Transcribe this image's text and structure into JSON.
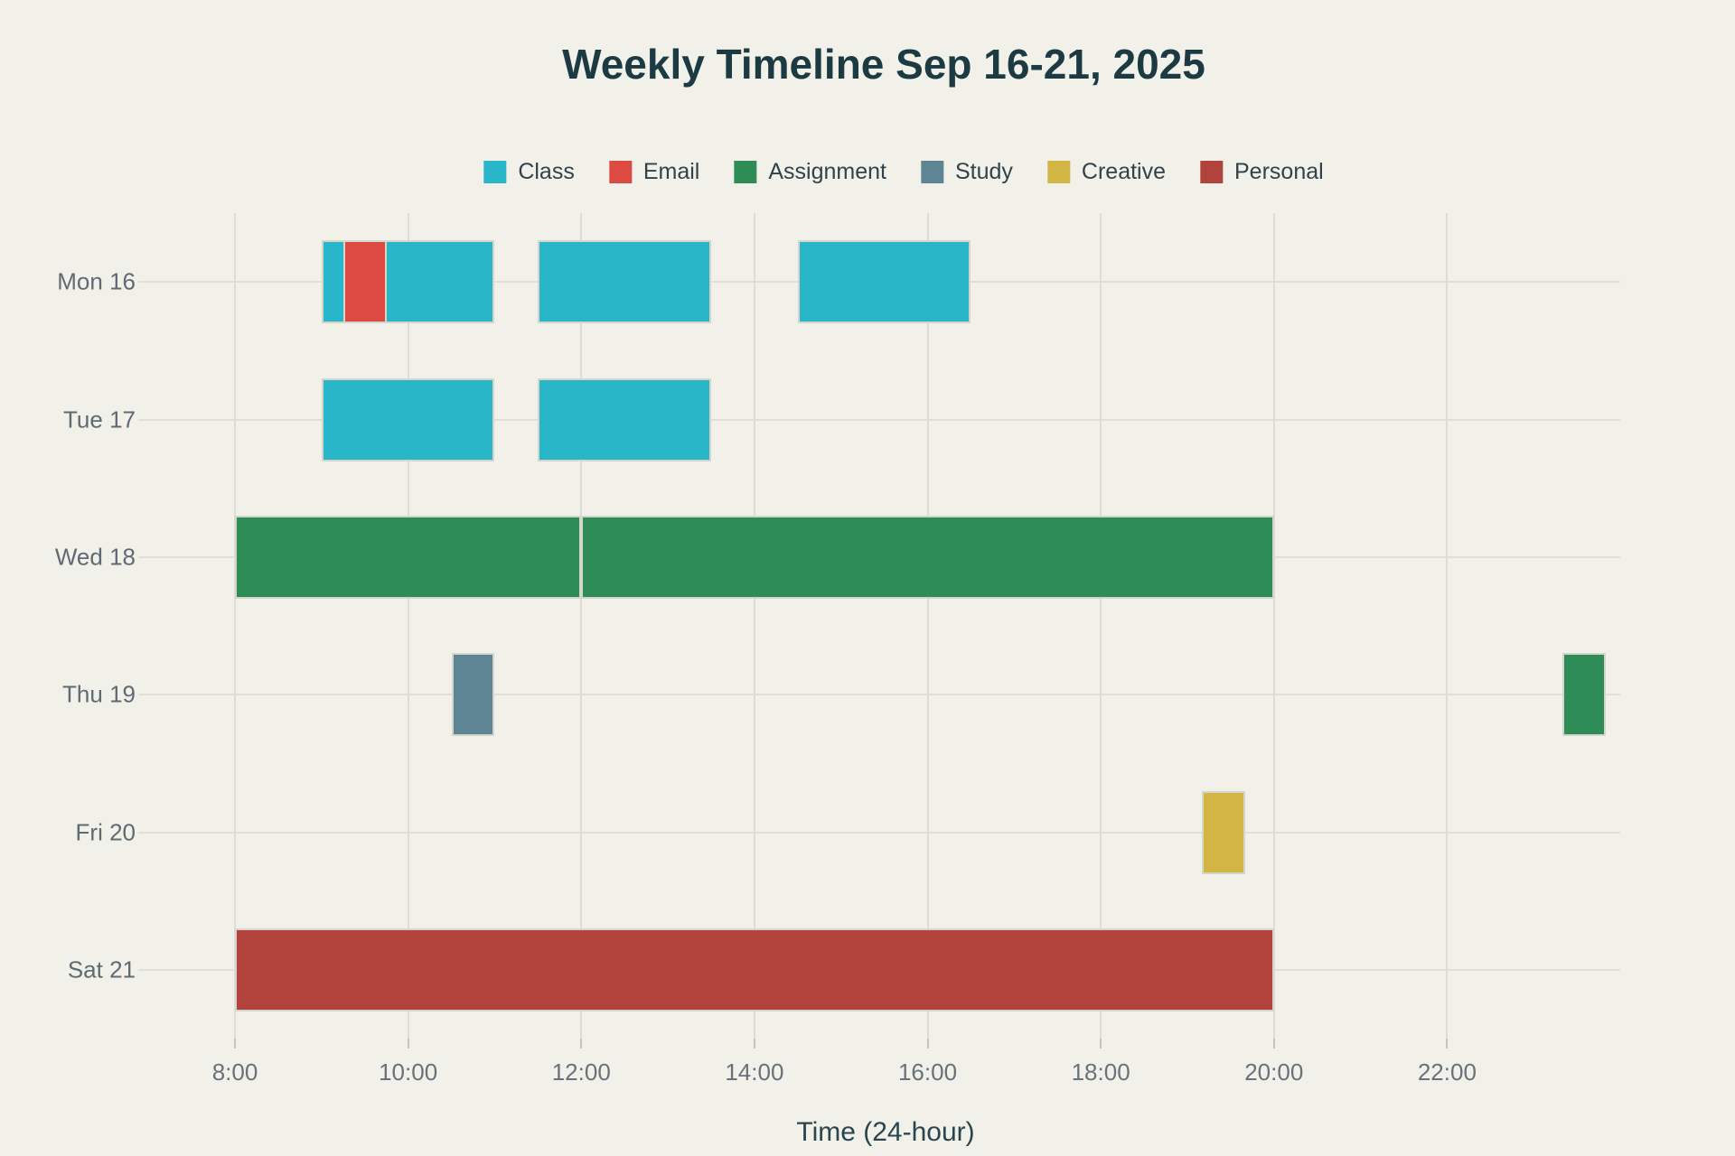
{
  "styles": {
    "background": "#f1f0e9",
    "title_color": "#1b3a42",
    "legend_text_color": "#32424b",
    "x_tick_label_color": "#68727b",
    "y_label_color": "#5f6a73",
    "axis_title_color": "#2a454e",
    "gridline_color": "#deddd5",
    "bar_border_color": "#d6d5cd"
  },
  "chart_data": {
    "type": "bar",
    "variant": "gantt-timeline",
    "title": "Weekly Timeline Sep 16-21, 2025",
    "xlabel": "Time (24-hour)",
    "ylabel": "",
    "grid": true,
    "legend_position": "top-center",
    "xlim": [
      8,
      24
    ],
    "x_tick_hours": [
      8,
      10,
      12,
      14,
      16,
      18,
      20,
      22
    ],
    "x_tick_labels": [
      "8:00",
      "10:00",
      "12:00",
      "14:00",
      "16:00",
      "18:00",
      "20:00",
      "22:00"
    ],
    "categories": [
      "Mon 16",
      "Tue 17",
      "Wed 18",
      "Thu 19",
      "Fri 20",
      "Sat 21"
    ],
    "legend": [
      {
        "label": "Class",
        "color": "#29b6c8"
      },
      {
        "label": "Email",
        "color": "#dc4a43"
      },
      {
        "label": "Assignment",
        "color": "#2e8c57"
      },
      {
        "label": "Study",
        "color": "#5e8593"
      },
      {
        "label": "Creative",
        "color": "#d3b543"
      },
      {
        "label": "Personal",
        "color": "#b1423c"
      }
    ],
    "bars": [
      {
        "day": "Mon 16",
        "row": 0,
        "category": "Class",
        "start": "9:00",
        "end": "11:00",
        "start_h": 9.0,
        "end_h": 11.0
      },
      {
        "day": "Mon 16",
        "row": 0,
        "category": "Email",
        "start": "9:15",
        "end": "9:45",
        "start_h": 9.25,
        "end_h": 9.75,
        "overlay": true
      },
      {
        "day": "Mon 16",
        "row": 0,
        "category": "Class",
        "start": "11:30",
        "end": "13:30",
        "start_h": 11.5,
        "end_h": 13.5
      },
      {
        "day": "Mon 16",
        "row": 0,
        "category": "Class",
        "start": "14:30",
        "end": "16:30",
        "start_h": 14.5,
        "end_h": 16.5
      },
      {
        "day": "Tue 17",
        "row": 1,
        "category": "Class",
        "start": "9:00",
        "end": "11:00",
        "start_h": 9.0,
        "end_h": 11.0
      },
      {
        "day": "Tue 17",
        "row": 1,
        "category": "Class",
        "start": "11:30",
        "end": "13:30",
        "start_h": 11.5,
        "end_h": 13.5
      },
      {
        "day": "Wed 18",
        "row": 2,
        "category": "Assignment",
        "start": "8:00",
        "end": "12:00",
        "start_h": 8.0,
        "end_h": 12.0
      },
      {
        "day": "Wed 18",
        "row": 2,
        "category": "Assignment",
        "start": "12:00",
        "end": "20:00",
        "start_h": 12.0,
        "end_h": 20.0
      },
      {
        "day": "Thu 19",
        "row": 3,
        "category": "Study",
        "start": "10:30",
        "end": "11:00",
        "start_h": 10.5,
        "end_h": 11.0
      },
      {
        "day": "Thu 19",
        "row": 3,
        "category": "Assignment",
        "start": "23:20",
        "end": "23:50",
        "start_h": 23.333,
        "end_h": 23.833
      },
      {
        "day": "Fri 20",
        "row": 4,
        "category": "Creative",
        "start": "19:10",
        "end": "19:40",
        "start_h": 19.167,
        "end_h": 19.667
      },
      {
        "day": "Sat 21",
        "row": 5,
        "category": "Personal",
        "start": "8:00",
        "end": "20:00",
        "start_h": 8.0,
        "end_h": 20.0
      }
    ]
  }
}
